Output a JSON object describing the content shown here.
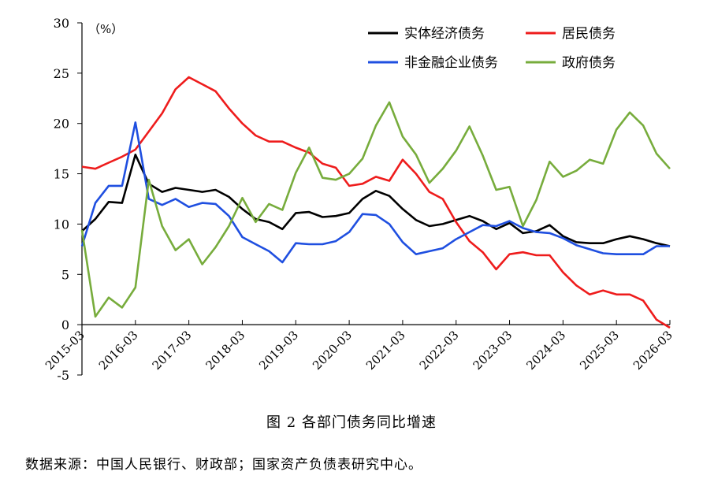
{
  "figure": {
    "caption": "图 2   各部门债务同比增速",
    "source": "数据来源：中国人民银行、财政部；国家资产负债表研究中心。"
  },
  "chart_data": {
    "type": "line",
    "unit_label": "（%）",
    "ylim": [
      -5,
      30
    ],
    "yticks": [
      -5,
      0,
      5,
      10,
      15,
      20,
      25,
      30
    ],
    "x_ticks": [
      "2015-03",
      "2016-03",
      "2017-03",
      "2018-03",
      "2019-03",
      "2020-03",
      "2021-03",
      "2022-03",
      "2023-03",
      "2024-03",
      "2025-03",
      "2026-03"
    ],
    "x": [
      "2015-03",
      "2015-06",
      "2015-09",
      "2015-12",
      "2016-03",
      "2016-06",
      "2016-09",
      "2016-12",
      "2017-03",
      "2017-06",
      "2017-09",
      "2017-12",
      "2018-03",
      "2018-06",
      "2018-09",
      "2018-12",
      "2019-03",
      "2019-06",
      "2019-09",
      "2019-12",
      "2020-03",
      "2020-06",
      "2020-09",
      "2020-12",
      "2021-03",
      "2021-06",
      "2021-09",
      "2021-12",
      "2022-03",
      "2022-06",
      "2022-09",
      "2022-12",
      "2023-03",
      "2023-06",
      "2023-09",
      "2023-12",
      "2024-03",
      "2024-06",
      "2024-09",
      "2024-12",
      "2025-03",
      "2025-06",
      "2025-09",
      "2025-12",
      "2026-03"
    ],
    "legend_position": "top-right",
    "grid": false,
    "series": [
      {
        "name": "实体经济债务",
        "color": "#000000",
        "values": [
          9.3,
          10.5,
          12.2,
          12.1,
          16.9,
          14.0,
          13.2,
          13.6,
          13.4,
          13.2,
          13.4,
          12.7,
          11.5,
          10.5,
          10.2,
          9.5,
          11.1,
          11.2,
          10.7,
          10.8,
          11.1,
          12.5,
          13.3,
          12.8,
          11.5,
          10.4,
          9.8,
          10.0,
          10.4,
          10.8,
          10.3,
          9.5,
          10.1,
          9.1,
          9.3,
          9.9,
          8.8,
          8.2,
          8.1,
          8.1,
          8.5,
          8.8,
          8.5,
          8.1,
          7.8
        ]
      },
      {
        "name": "居民债务",
        "color": "#ee1c1c",
        "values": [
          15.7,
          15.5,
          16.1,
          16.7,
          17.4,
          19.2,
          21.0,
          23.4,
          24.6,
          23.9,
          23.2,
          21.5,
          20.0,
          18.8,
          18.2,
          18.2,
          17.6,
          17.1,
          16.0,
          15.6,
          13.8,
          14.0,
          14.7,
          14.3,
          16.4,
          15.0,
          13.2,
          12.5,
          10.2,
          8.3,
          7.2,
          5.5,
          7.0,
          7.2,
          6.9,
          6.9,
          5.2,
          3.9,
          3.0,
          3.4,
          3.0,
          3.0,
          2.4,
          0.5,
          -0.3
        ]
      },
      {
        "name": "非金融企业债务",
        "color": "#1f4fe0",
        "values": [
          7.8,
          12.1,
          13.8,
          13.8,
          20.1,
          12.5,
          11.9,
          12.5,
          11.7,
          12.1,
          12.0,
          10.8,
          8.7,
          8.0,
          7.3,
          6.2,
          8.1,
          8.0,
          8.0,
          8.3,
          9.2,
          11.0,
          10.9,
          10.0,
          8.2,
          7.0,
          7.3,
          7.6,
          8.5,
          9.2,
          9.9,
          9.8,
          10.3,
          9.6,
          9.2,
          9.1,
          8.6,
          7.9,
          7.5,
          7.1,
          7.0,
          7.0,
          7.0,
          7.8,
          7.8
        ]
      },
      {
        "name": "政府债务",
        "color": "#77ac3c",
        "values": [
          9.4,
          0.8,
          2.7,
          1.7,
          3.7,
          14.4,
          9.8,
          7.4,
          8.5,
          6.0,
          7.7,
          9.8,
          12.6,
          10.2,
          12.0,
          11.4,
          15.1,
          17.6,
          14.6,
          14.4,
          15.0,
          16.5,
          19.8,
          22.1,
          18.7,
          16.9,
          14.1,
          15.5,
          17.3,
          19.7,
          16.8,
          13.4,
          13.7,
          9.8,
          12.4,
          16.2,
          14.7,
          15.3,
          16.4,
          16.0,
          19.4,
          21.1,
          19.8,
          17.0,
          15.5
        ]
      }
    ]
  }
}
